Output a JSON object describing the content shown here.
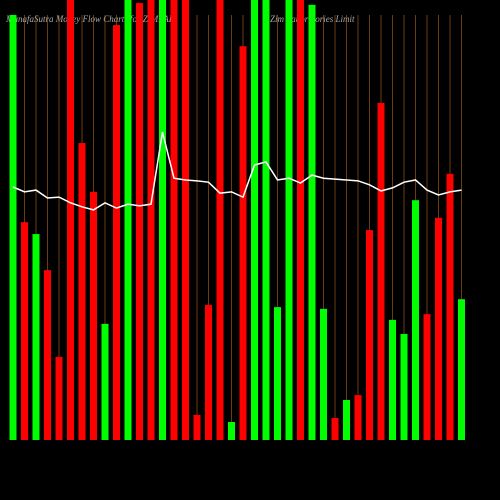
{
  "chart_data": {
    "type": "bar",
    "title": "MunafaSutra Money Flow Charts for ZIMLAB",
    "subtitle": "Zim Laboratories Limit",
    "ylim": [
      0,
      100
    ],
    "values": [
      96.6,
      49.5,
      46.8,
      38.6,
      18.9,
      100,
      67.5,
      56.4,
      26.4,
      94.3,
      100,
      99.3,
      100,
      100,
      100,
      100,
      5.7,
      30.7,
      100,
      4.1,
      89.5,
      100,
      100,
      30.2,
      100,
      100,
      98.9,
      29.8,
      5,
      9.1,
      10.2,
      47.7,
      76.6,
      27.3,
      24.1,
      54.5,
      28.6,
      50.5,
      60.5,
      32
    ],
    "colors": [
      "#00ff00",
      "#ff0000",
      "#00ff00",
      "#ff0000",
      "#ff0000",
      "#ff0000",
      "#ff0000",
      "#ff0000",
      "#00ff00",
      "#ff0000",
      "#00ff00",
      "#ff0000",
      "#ff0000",
      "#00ff00",
      "#ff0000",
      "#ff0000",
      "#ff0000",
      "#ff0000",
      "#ff0000",
      "#00ff00",
      "#ff0000",
      "#00ff00",
      "#00ff00",
      "#00ff00",
      "#00ff00",
      "#ff0000",
      "#00ff00",
      "#00ff00",
      "#ff0000",
      "#00ff00",
      "#ff0000",
      "#ff0000",
      "#ff0000",
      "#00ff00",
      "#00ff00",
      "#00ff00",
      "#ff0000",
      "#ff0000",
      "#ff0000",
      "#00ff00"
    ],
    "line": {
      "color": "#ffffff",
      "values": [
        57.5,
        56.4,
        56.8,
        55,
        55.2,
        53.9,
        53,
        52.3,
        53.9,
        52.7,
        53.6,
        53.2,
        53.6,
        70,
        59.5,
        59.1,
        58.9,
        58.6,
        56.1,
        56.4,
        55.2,
        62.5,
        63.2,
        59.1,
        59.5,
        58.4,
        60.2,
        59.5,
        59.3,
        59.1,
        58.9,
        58,
        56.6,
        57.3,
        58.6,
        59.1,
        56.8,
        55.7,
        56.4,
        56.8
      ]
    },
    "grid_color": "#b5651d"
  }
}
